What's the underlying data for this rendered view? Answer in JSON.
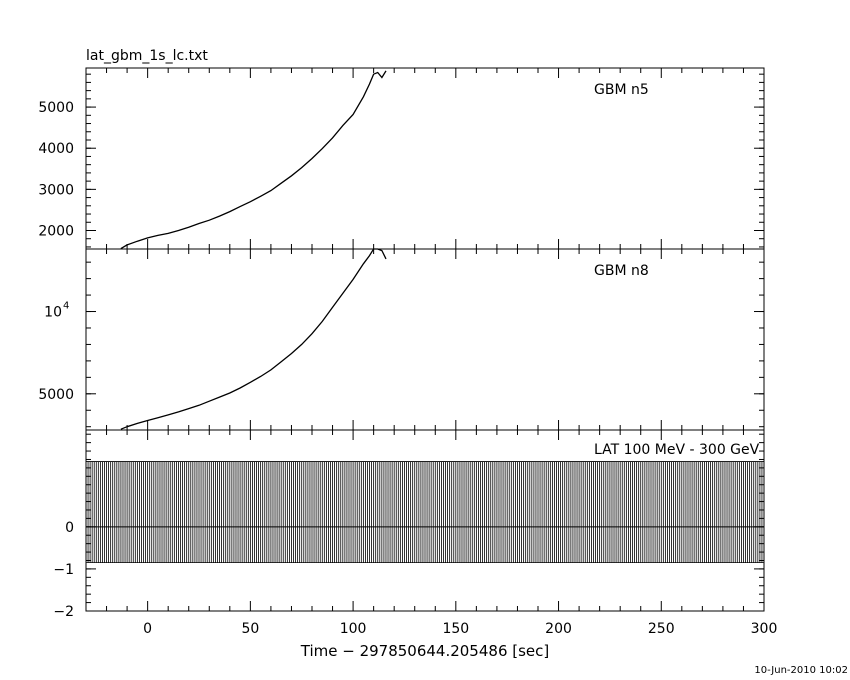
{
  "file_title": "lat_gbm_1s_lc.txt",
  "timestamp": "10-Jun-2010 10:02",
  "chart_data": [
    {
      "type": "line",
      "panel": "top",
      "label": "GBM n5",
      "xlim": [
        -30,
        300
      ],
      "ylim": [
        1550,
        5950
      ],
      "yticks": [
        {
          "v": 2000,
          "t": "2000"
        },
        {
          "v": 3000,
          "t": "3000"
        },
        {
          "v": 4000,
          "t": "4000"
        },
        {
          "v": 5000,
          "t": "5000"
        }
      ],
      "y_minor_step": 200,
      "series": [
        {
          "x": [
            -13,
            -10,
            -5,
            0,
            5,
            10,
            15,
            20,
            25,
            30,
            35,
            40,
            45,
            50,
            55,
            60,
            65,
            70,
            75,
            80,
            85,
            90,
            95,
            100,
            105,
            108,
            110,
            112,
            114,
            116
          ],
          "y": [
            1560,
            1650,
            1740,
            1820,
            1880,
            1930,
            2000,
            2080,
            2170,
            2250,
            2350,
            2460,
            2580,
            2700,
            2830,
            2970,
            3150,
            3330,
            3530,
            3750,
            3990,
            4250,
            4550,
            4820,
            5250,
            5560,
            5800,
            5840,
            5720,
            5880
          ]
        }
      ]
    },
    {
      "type": "line",
      "panel": "middle",
      "label": "GBM n8",
      "xlim": [
        -30,
        300
      ],
      "ylim": [
        2800,
        13800
      ],
      "yticks": [
        {
          "v": 5000,
          "t": "5000"
        },
        {
          "v": 10000,
          "t": "10",
          "sup": "4"
        }
      ],
      "y_minor_step": 1000,
      "series": [
        {
          "x": [
            -13,
            -10,
            -5,
            0,
            5,
            10,
            15,
            20,
            25,
            30,
            35,
            40,
            45,
            50,
            55,
            60,
            65,
            70,
            75,
            80,
            85,
            90,
            95,
            100,
            105,
            108,
            110,
            112,
            114,
            116
          ],
          "y": [
            2850,
            3000,
            3200,
            3380,
            3550,
            3720,
            3900,
            4100,
            4300,
            4550,
            4800,
            5050,
            5350,
            5700,
            6050,
            6450,
            6950,
            7450,
            8000,
            8650,
            9400,
            10250,
            11100,
            11950,
            12900,
            13400,
            13800,
            13900,
            13700,
            13200
          ]
        }
      ]
    },
    {
      "type": "bar",
      "panel": "bottom",
      "label": "LAT 100 MeV - 300 GeV",
      "xlim": [
        -30,
        300
      ],
      "ylim": [
        -2,
        2.3
      ],
      "yticks": [
        {
          "v": -2,
          "t": "−2"
        },
        {
          "v": -1,
          "t": "−1"
        },
        {
          "v": 0,
          "t": "0"
        }
      ],
      "y_minor_step": 0.2,
      "error_bars": {
        "x_start": -30,
        "x_end": 300,
        "x_step": 1,
        "y": 0,
        "upper": 1.55,
        "lower": -0.85
      },
      "xticks": [
        0,
        50,
        100,
        150,
        200,
        250,
        300
      ],
      "x_minor_step": 10,
      "xlabel": "Time − 297850644.205486 [sec]"
    }
  ]
}
